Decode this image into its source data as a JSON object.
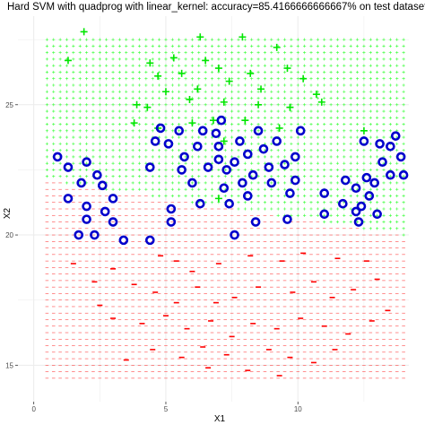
{
  "chart_data": {
    "type": "scatter",
    "title": "Hard SVM with quadprog with linear_kernel: accuracy=85.4166666666667% on test dataset",
    "xlabel": "X1",
    "ylabel": "X2",
    "xlim": [
      -0.6,
      14.2
    ],
    "ylim": [
      13.6,
      28.4
    ],
    "x_ticks": [
      0,
      5,
      10
    ],
    "y_ticks": [
      15,
      20,
      25
    ],
    "grid": "major and minor, light",
    "decision_boundary": {
      "type": "linear",
      "points": [
        [
          0.5,
          22.1
        ],
        [
          14.0,
          20.0
        ]
      ],
      "region_above": {
        "marker": "+",
        "color": "#33ff33"
      },
      "region_below": {
        "marker": "-",
        "color": "#ff4444"
      },
      "grid_x_range": [
        0.5,
        14.0
      ],
      "grid_y_range": [
        14.5,
        27.6
      ],
      "grid_spacing": 0.25
    },
    "series": [
      {
        "marker": "+",
        "color": "#00e600",
        "points": [
          [
            1.9,
            27.8
          ],
          [
            1.3,
            26.7
          ],
          [
            6.5,
            26.7
          ],
          [
            4.4,
            26.6
          ],
          [
            5.3,
            26.8
          ],
          [
            6.3,
            27.6
          ],
          [
            7.9,
            27.6
          ],
          [
            9.2,
            27.2
          ],
          [
            9.6,
            26.4
          ],
          [
            4.7,
            26.1
          ],
          [
            5.6,
            26.2
          ],
          [
            7.0,
            26.4
          ],
          [
            8.2,
            26.2
          ],
          [
            5.0,
            25.5
          ],
          [
            6.2,
            25.6
          ],
          [
            7.4,
            25.9
          ],
          [
            8.6,
            25.6
          ],
          [
            10.2,
            26.0
          ],
          [
            10.7,
            25.4
          ],
          [
            3.9,
            25.0
          ],
          [
            5.9,
            25.2
          ],
          [
            7.2,
            25.1
          ],
          [
            8.5,
            25.0
          ],
          [
            9.7,
            24.9
          ],
          [
            10.9,
            25.1
          ],
          [
            3.8,
            24.3
          ],
          [
            4.7,
            24.1
          ],
          [
            6.0,
            24.3
          ],
          [
            8.0,
            24.4
          ],
          [
            9.3,
            24.1
          ],
          [
            7.2,
            23.6
          ],
          [
            7.0,
            21.4
          ],
          [
            12.5,
            24.0
          ],
          [
            4.3,
            24.9
          ],
          [
            6.8,
            24.4
          ]
        ]
      },
      {
        "marker": "circle",
        "color": "#0000cc",
        "points": [
          [
            0.9,
            23.0
          ],
          [
            1.3,
            22.6
          ],
          [
            2.0,
            22.8
          ],
          [
            2.4,
            22.3
          ],
          [
            1.8,
            22.0
          ],
          [
            2.6,
            21.9
          ],
          [
            1.3,
            21.4
          ],
          [
            2.0,
            21.1
          ],
          [
            3.0,
            21.4
          ],
          [
            2.7,
            20.9
          ],
          [
            2.0,
            20.6
          ],
          [
            1.7,
            20.0
          ],
          [
            2.3,
            20.0
          ],
          [
            3.0,
            20.5
          ],
          [
            3.4,
            19.8
          ],
          [
            4.4,
            19.8
          ],
          [
            5.2,
            21.0
          ],
          [
            5.2,
            20.5
          ],
          [
            4.4,
            22.6
          ],
          [
            4.6,
            23.6
          ],
          [
            4.8,
            24.1
          ],
          [
            5.1,
            23.5
          ],
          [
            5.5,
            24.0
          ],
          [
            5.7,
            23.0
          ],
          [
            5.6,
            22.5
          ],
          [
            6.0,
            22.0
          ],
          [
            6.2,
            23.4
          ],
          [
            6.4,
            24.0
          ],
          [
            6.6,
            22.6
          ],
          [
            6.9,
            23.9
          ],
          [
            7.0,
            23.4
          ],
          [
            7.1,
            24.4
          ],
          [
            7.0,
            22.9
          ],
          [
            7.3,
            22.5
          ],
          [
            7.2,
            21.8
          ],
          [
            7.4,
            21.2
          ],
          [
            7.6,
            22.8
          ],
          [
            7.8,
            23.6
          ],
          [
            7.9,
            22.0
          ],
          [
            8.1,
            23.1
          ],
          [
            8.1,
            21.5
          ],
          [
            8.3,
            22.3
          ],
          [
            8.4,
            20.5
          ],
          [
            8.5,
            24.0
          ],
          [
            8.7,
            23.3
          ],
          [
            8.9,
            22.6
          ],
          [
            9.0,
            22.0
          ],
          [
            9.2,
            23.6
          ],
          [
            9.5,
            22.7
          ],
          [
            9.6,
            20.6
          ],
          [
            9.7,
            21.6
          ],
          [
            9.9,
            22.1
          ],
          [
            9.9,
            23.0
          ],
          [
            10.1,
            24.0
          ],
          [
            7.6,
            20.0
          ],
          [
            11.0,
            21.6
          ],
          [
            11.0,
            20.8
          ],
          [
            11.7,
            21.2
          ],
          [
            11.8,
            22.1
          ],
          [
            12.2,
            20.9
          ],
          [
            12.2,
            21.8
          ],
          [
            12.4,
            21.1
          ],
          [
            12.6,
            22.2
          ],
          [
            12.3,
            20.5
          ],
          [
            12.7,
            21.5
          ],
          [
            12.9,
            22.0
          ],
          [
            13.1,
            23.5
          ],
          [
            13.5,
            23.4
          ],
          [
            13.2,
            22.8
          ],
          [
            13.5,
            22.3
          ],
          [
            13.7,
            23.8
          ],
          [
            13.9,
            23.0
          ],
          [
            14.0,
            22.3
          ],
          [
            13.0,
            20.8
          ],
          [
            12.5,
            23.6
          ],
          [
            6.3,
            21.2
          ]
        ]
      },
      {
        "marker": "-",
        "color": "#ff0000",
        "points": [
          [
            1.5,
            18.9
          ],
          [
            3.0,
            18.7
          ],
          [
            4.8,
            19.2
          ],
          [
            5.4,
            19.0
          ],
          [
            6.0,
            18.6
          ],
          [
            7.0,
            18.9
          ],
          [
            8.2,
            19.2
          ],
          [
            9.4,
            19.0
          ],
          [
            10.2,
            19.3
          ],
          [
            11.5,
            19.1
          ],
          [
            12.6,
            19.0
          ],
          [
            2.3,
            18.2
          ],
          [
            3.8,
            18.1
          ],
          [
            4.6,
            17.8
          ],
          [
            5.4,
            17.4
          ],
          [
            6.2,
            18.0
          ],
          [
            6.9,
            17.4
          ],
          [
            7.6,
            17.6
          ],
          [
            8.5,
            18.0
          ],
          [
            9.8,
            17.8
          ],
          [
            10.6,
            18.2
          ],
          [
            11.3,
            17.6
          ],
          [
            12.1,
            17.9
          ],
          [
            13.0,
            18.3
          ],
          [
            3.0,
            16.8
          ],
          [
            4.1,
            16.6
          ],
          [
            5.0,
            16.9
          ],
          [
            5.8,
            16.4
          ],
          [
            6.7,
            16.7
          ],
          [
            7.5,
            16.1
          ],
          [
            8.3,
            16.6
          ],
          [
            9.2,
            16.4
          ],
          [
            10.1,
            16.8
          ],
          [
            11.0,
            16.5
          ],
          [
            11.9,
            16.2
          ],
          [
            12.8,
            16.7
          ],
          [
            4.5,
            15.6
          ],
          [
            5.6,
            15.3
          ],
          [
            6.4,
            15.7
          ],
          [
            7.3,
            15.4
          ],
          [
            8.9,
            15.6
          ],
          [
            9.7,
            15.3
          ],
          [
            10.6,
            15.1
          ],
          [
            11.4,
            15.6
          ],
          [
            3.5,
            15.2
          ],
          [
            6.6,
            14.9
          ],
          [
            8.1,
            14.8
          ],
          [
            9.3,
            14.6
          ],
          [
            2.5,
            17.3
          ],
          [
            13.4,
            17.1
          ]
        ]
      }
    ]
  }
}
